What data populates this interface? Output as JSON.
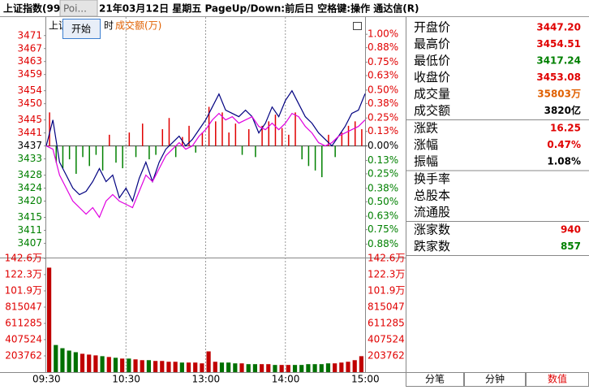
{
  "header": {
    "title": "上证指数(99",
    "popup_hint": "Poi...",
    "info": "21年03月12日 星期五 PageUp/Down:前后日 空格键:操作 通达信(R)"
  },
  "overlay": {
    "label_left": "上证",
    "button": "开始",
    "label_mid": "时",
    "label_turnover": "成交额(万)"
  },
  "chart_data": {
    "type": "intraday",
    "ylim": [
      3402.6,
      3475.7
    ],
    "yticks": [
      3471,
      3467,
      3463,
      3459,
      3454,
      3450,
      3445,
      3441,
      3437,
      3433,
      3428,
      3424,
      3420,
      3415,
      3411,
      3407
    ],
    "y2lim": [
      -1,
      1.125
    ],
    "y2ticks": [
      {
        "value": 1,
        "label": "1.00%"
      },
      {
        "value": 0.88,
        "label": "0.88%"
      },
      {
        "value": 0.75,
        "label": "0.75%"
      },
      {
        "value": 0.63,
        "label": "0.63%"
      },
      {
        "value": 0.5,
        "label": "0.50%"
      },
      {
        "value": 0.38,
        "label": "0.38%"
      },
      {
        "value": 0.25,
        "label": "0.25%"
      },
      {
        "value": 0.13,
        "label": "0.13%"
      },
      {
        "value": 0,
        "label": "0.00%"
      },
      {
        "value": -0.13,
        "label": "0.13%"
      },
      {
        "value": -0.25,
        "label": "0.25%"
      },
      {
        "value": -0.38,
        "label": "0.38%"
      },
      {
        "value": -0.5,
        "label": "0.50%"
      },
      {
        "value": -0.63,
        "label": "0.63%"
      },
      {
        "value": -0.75,
        "label": "0.75%"
      },
      {
        "value": -0.88,
        "label": "0.88%"
      }
    ],
    "series": [
      {
        "color": "#000080",
        "values": [
          3437,
          3445,
          3432,
          3428,
          3424,
          3422,
          3423,
          3426,
          3430,
          3426,
          3428,
          3421,
          3424,
          3420,
          3427,
          3432,
          3426,
          3432,
          3436,
          3438,
          3440,
          3437,
          3439,
          3442,
          3445,
          3449,
          3453,
          3448,
          3447,
          3446,
          3448,
          3446,
          3441,
          3444,
          3449,
          3446,
          3451,
          3454,
          3450,
          3446,
          3444,
          3441,
          3439,
          3437,
          3440,
          3443,
          3447,
          3448,
          3453.08
        ]
      },
      {
        "color": "#e000e0",
        "values": [
          3437,
          3436,
          3428,
          3424,
          3420,
          3418,
          3416,
          3418,
          3415,
          3420,
          3422,
          3420,
          3419,
          3418,
          3423,
          3428,
          3426,
          3430,
          3434,
          3436,
          3438,
          3436,
          3437,
          3440,
          3442,
          3445,
          3447,
          3445,
          3446,
          3444,
          3445,
          3446,
          3443,
          3442,
          3444,
          3442,
          3444,
          3447,
          3446,
          3443,
          3441,
          3438,
          3437,
          3438,
          3440,
          3441,
          3442,
          3443,
          3445
        ]
      }
    ],
    "power": {
      "axis": "y2",
      "up_color": "#e00000",
      "down_color": "#008000",
      "values": [
        0.3,
        -0.15,
        -0.2,
        -0.12,
        -0.25,
        -0.1,
        -0.18,
        -0.08,
        -0.22,
        0.1,
        -0.15,
        -0.2,
        0.12,
        -0.1,
        0.2,
        -0.12,
        -0.08,
        0.15,
        0.25,
        -0.1,
        0.08,
        0.18,
        -0.06,
        0.12,
        0.35,
        0.22,
        0.3,
        0.12,
        0.2,
        -0.08,
        0.15,
        -0.1,
        0.18,
        0.22,
        0.28,
        0.16,
        0.1,
        0.3,
        -0.12,
        -0.18,
        -0.22,
        -0.28,
        0.1,
        -0.1,
        0.12,
        0.18,
        0.22,
        0.15
      ]
    },
    "volume": {
      "ylim": [
        0,
        1426334
      ],
      "yticks": [
        {
          "value": 1426000,
          "label": "142.6万"
        },
        {
          "value": 1223000,
          "label": "122.3万"
        },
        {
          "value": 1019000,
          "label": "101.9万"
        },
        815047,
        611285,
        407524,
        203762
      ],
      "values": [
        1310000,
        340000,
        300000,
        270000,
        250000,
        230000,
        220000,
        210000,
        200000,
        190000,
        180000,
        170000,
        170000,
        160000,
        150000,
        150000,
        140000,
        140000,
        130000,
        130000,
        120000,
        120000,
        120000,
        110000,
        260000,
        130000,
        120000,
        120000,
        110000,
        110000,
        100000,
        100000,
        100000,
        100000,
        90000,
        90000,
        90000,
        90000,
        90000,
        100000,
        100000,
        100000,
        110000,
        110000,
        120000,
        130000,
        150000,
        200000
      ]
    },
    "xticks": [
      "09:30",
      "10:30",
      "13:00",
      "14:00",
      "15:00"
    ]
  },
  "info_panel": {
    "groups": [
      [
        {
          "label": "开盘价",
          "value": "3447.20",
          "color": "#e00000"
        },
        {
          "label": "最高价",
          "value": "3454.51",
          "color": "#e00000"
        },
        {
          "label": "最低价",
          "value": "3417.24",
          "color": "#008000"
        },
        {
          "label": "收盘价",
          "value": "3453.08",
          "color": "#e00000"
        },
        {
          "label": "成交量",
          "value": "35803万",
          "color": "#e06000"
        },
        {
          "label": "成交额",
          "value": "3820亿",
          "color": "#000000"
        }
      ],
      [
        {
          "label": "涨跌",
          "value": "16.25",
          "color": "#e00000"
        },
        {
          "label": "涨幅",
          "value": "0.47%",
          "color": "#e00000"
        },
        {
          "label": "振幅",
          "value": "1.08%",
          "color": "#000000"
        }
      ],
      [
        {
          "label": "换手率"
        },
        {
          "label": "总股本"
        },
        {
          "label": "流通股"
        }
      ],
      [
        {
          "label": "涨家数",
          "value": "940",
          "color": "#e00000"
        },
        {
          "label": "跌家数",
          "value": "857",
          "color": "#008000"
        }
      ]
    ]
  },
  "tabs": [
    {
      "label": "分笔"
    },
    {
      "label": "分钟"
    },
    {
      "label": "数值",
      "active": true
    }
  ]
}
